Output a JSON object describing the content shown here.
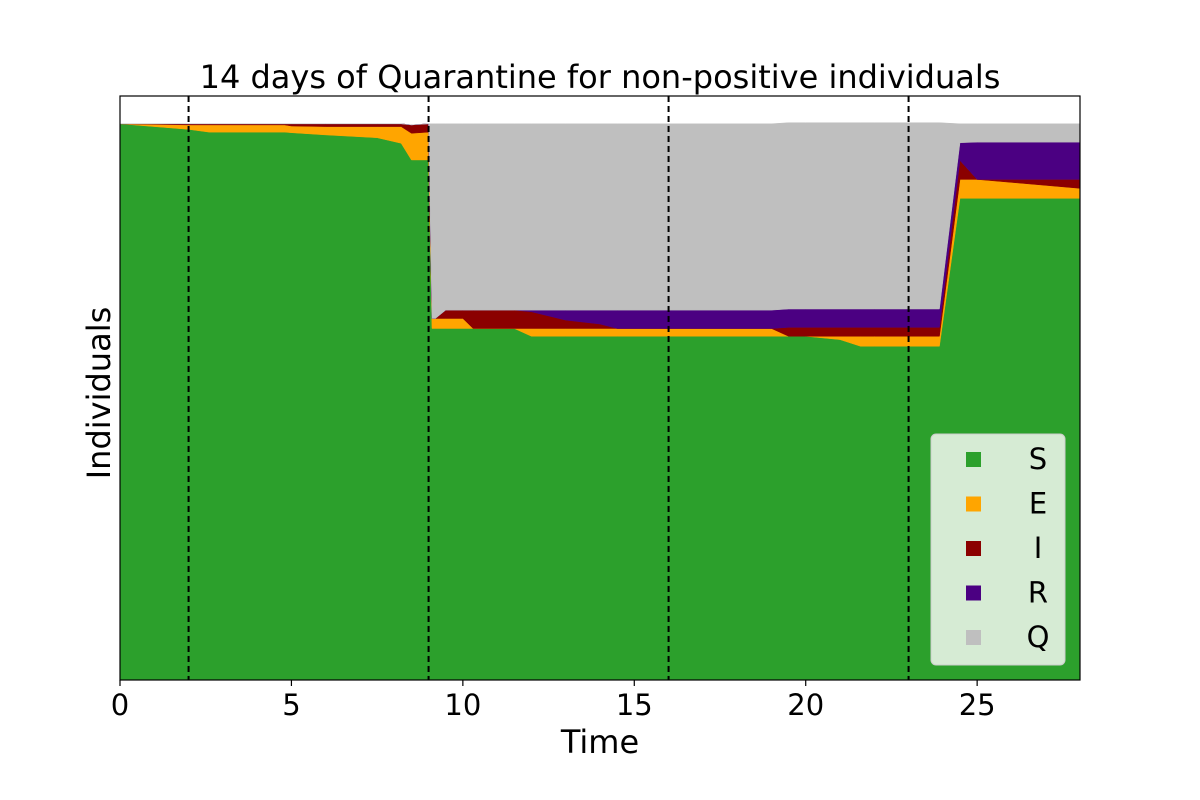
{
  "chart_data": {
    "type": "area",
    "stacked": true,
    "title": "14 days of Quarantine for non-positive individuals",
    "xlabel": "Time",
    "ylabel": "Individuals",
    "xlim": [
      0,
      28
    ],
    "ylim": [
      0,
      1.05
    ],
    "xticks": [
      0,
      5,
      10,
      15,
      20,
      25
    ],
    "yticks_shown": false,
    "grid": false,
    "legend_position": "lower-right",
    "vlines": [
      2,
      9,
      16,
      23
    ],
    "vline_style": "dashed",
    "x": [
      0,
      2,
      2.6,
      4.8,
      5,
      6,
      7.5,
      8.2,
      8.5,
      9,
      9.1,
      9.2,
      9.5,
      10,
      10.3,
      11.5,
      12,
      13,
      14,
      14.5,
      19,
      19.5,
      20,
      21,
      21.6,
      22,
      23,
      23.8,
      23.9,
      24.5,
      25,
      28
    ],
    "series": [
      {
        "name": "S",
        "color": "#2ca02c",
        "values": [
          1.0,
          0.99,
          0.985,
          0.985,
          0.984,
          0.98,
          0.975,
          0.965,
          0.935,
          0.935,
          0.632,
          0.632,
          0.632,
          0.632,
          0.632,
          0.632,
          0.618,
          0.618,
          0.618,
          0.618,
          0.618,
          0.618,
          0.618,
          0.612,
          0.6,
          0.6,
          0.6,
          0.6,
          0.6,
          0.866,
          0.866,
          0.866
        ]
      },
      {
        "name": "E",
        "color": "#ffa500",
        "values": [
          0.0,
          0.008,
          0.013,
          0.013,
          0.012,
          0.015,
          0.02,
          0.03,
          0.048,
          0.05,
          0.018,
          0.018,
          0.018,
          0.018,
          0.0,
          0.0,
          0.014,
          0.014,
          0.014,
          0.014,
          0.014,
          0.0,
          0.0,
          0.006,
          0.018,
          0.018,
          0.018,
          0.018,
          0.018,
          0.034,
          0.034,
          0.018
        ]
      },
      {
        "name": "I",
        "color": "#8b0000",
        "values": [
          0.0,
          0.002,
          0.002,
          0.002,
          0.004,
          0.005,
          0.005,
          0.005,
          0.015,
          0.015,
          0.0,
          0.0,
          0.015,
          0.015,
          0.033,
          0.033,
          0.03,
          0.015,
          0.008,
          0.0,
          0.0,
          0.016,
          0.016,
          0.016,
          0.016,
          0.016,
          0.016,
          0.016,
          0.016,
          0.034,
          0.0,
          0.016
        ]
      },
      {
        "name": "R",
        "color": "#4b0082",
        "values": [
          0.0,
          0.0,
          0.0,
          0.0,
          0.0,
          0.0,
          0.0,
          0.0,
          0.0,
          0.0,
          0.0,
          0.0,
          0.0,
          0.0,
          0.0,
          0.0,
          0.003,
          0.018,
          0.025,
          0.033,
          0.033,
          0.033,
          0.033,
          0.033,
          0.033,
          0.033,
          0.033,
          0.033,
          0.033,
          0.032,
          0.067,
          0.067
        ]
      },
      {
        "name": "Q",
        "color": "#bfbfbf",
        "values": [
          0.0,
          0.0,
          0.0,
          0.0,
          0.0,
          0.0,
          0.0,
          0.0,
          0.0,
          0.0,
          0.35,
          0.35,
          0.335,
          0.335,
          0.335,
          0.335,
          0.335,
          0.335,
          0.335,
          0.335,
          0.335,
          0.335,
          0.335,
          0.335,
          0.335,
          0.335,
          0.335,
          0.335,
          0.335,
          0.034,
          0.033,
          0.033
        ]
      }
    ]
  }
}
